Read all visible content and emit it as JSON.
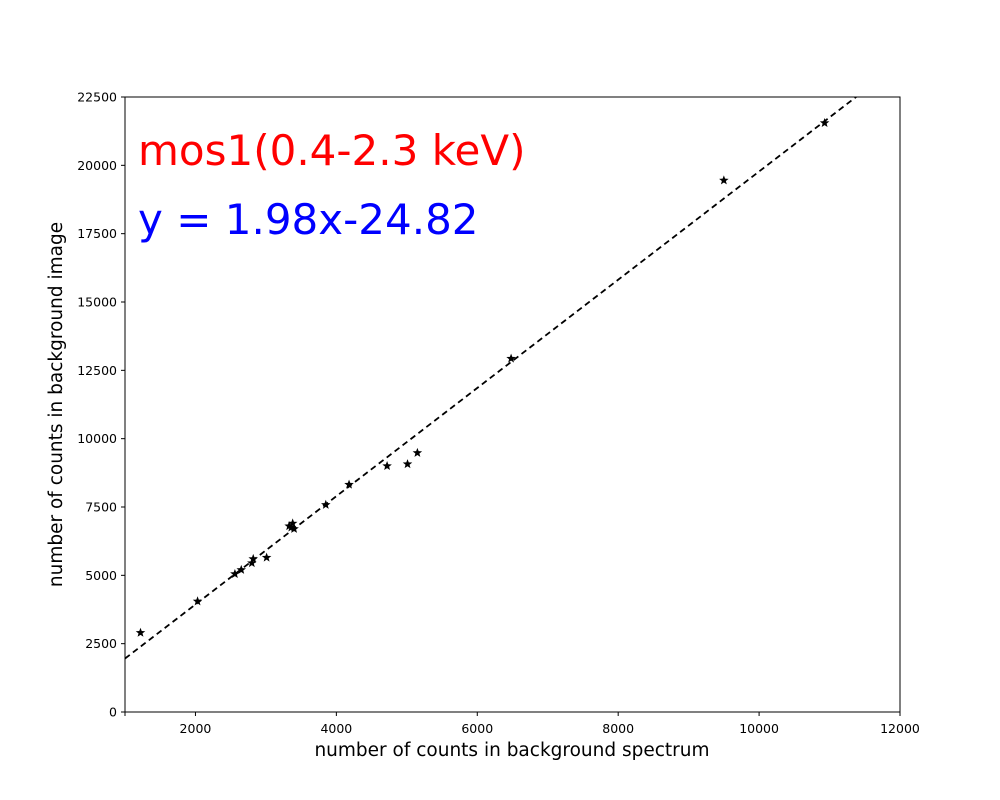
{
  "chart_data": {
    "type": "scatter",
    "xlabel": "number of counts in background spectrum",
    "ylabel": "number of counts in background image",
    "xlim": [
      1000,
      12000
    ],
    "ylim": [
      0,
      22500
    ],
    "x_ticks": [
      2000,
      4000,
      6000,
      8000,
      10000,
      12000
    ],
    "y_ticks": [
      0,
      2500,
      5000,
      7500,
      10000,
      12500,
      15000,
      17500,
      20000,
      22500
    ],
    "grid": false,
    "marker": "star",
    "marker_color": "#000000",
    "fit_line_color": "#000000",
    "fit_line_style": "dashed",
    "fit": {
      "slope": 1.98,
      "intercept": -24.82
    },
    "annotations": [
      {
        "text": "mos1(0.4-2.3 keV)",
        "color": "#ff0000"
      },
      {
        "text": "y = 1.98x-24.82",
        "color": "#0000ff"
      }
    ],
    "points": [
      {
        "x": 1220,
        "y": 2900
      },
      {
        "x": 2030,
        "y": 4050
      },
      {
        "x": 2560,
        "y": 5050
      },
      {
        "x": 2650,
        "y": 5200
      },
      {
        "x": 2800,
        "y": 5450
      },
      {
        "x": 2820,
        "y": 5600
      },
      {
        "x": 3010,
        "y": 5650
      },
      {
        "x": 3330,
        "y": 6800
      },
      {
        "x": 3360,
        "y": 6750
      },
      {
        "x": 3380,
        "y": 6900
      },
      {
        "x": 3400,
        "y": 6700
      },
      {
        "x": 3850,
        "y": 7580
      },
      {
        "x": 4180,
        "y": 8320
      },
      {
        "x": 4720,
        "y": 9000
      },
      {
        "x": 5010,
        "y": 9070
      },
      {
        "x": 5150,
        "y": 9480
      },
      {
        "x": 6480,
        "y": 12930
      },
      {
        "x": 9500,
        "y": 19450
      },
      {
        "x": 10930,
        "y": 21550
      }
    ]
  }
}
